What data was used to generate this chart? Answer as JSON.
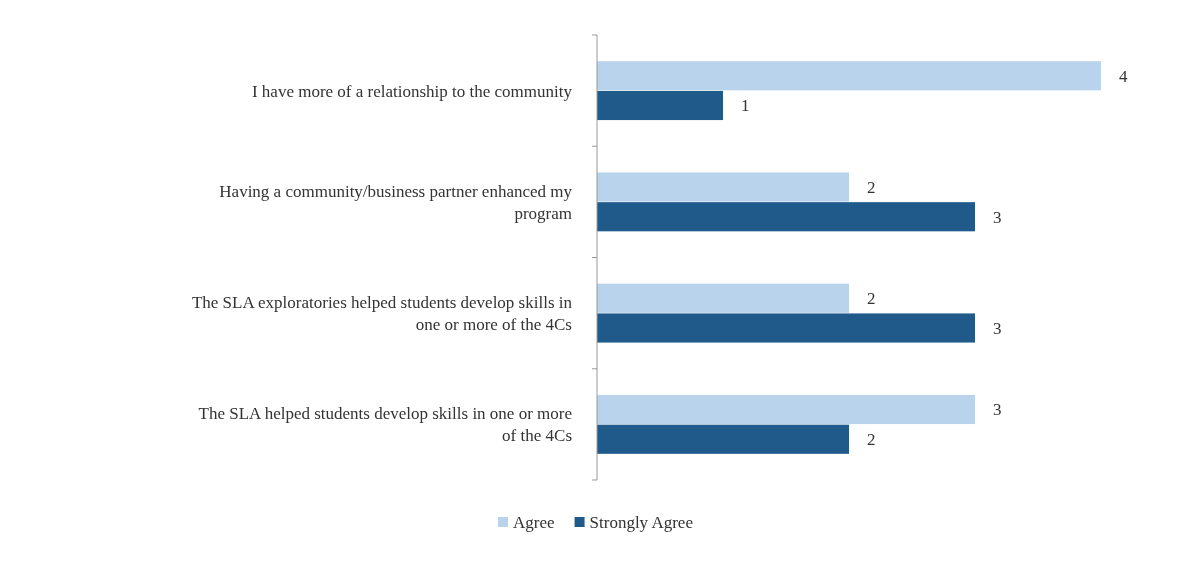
{
  "chart_data": {
    "type": "bar",
    "orientation": "horizontal",
    "categories": [
      "I have more of a relationship to the community",
      "Having a community/business partner enhanced my program",
      "The SLA exploratories helped students develop skills in one or more of the 4Cs",
      "The SLA helped students develop skills in one or more of the 4Cs"
    ],
    "series": [
      {
        "name": "Agree",
        "color": "#b9d3ec",
        "values": [
          4,
          2,
          2,
          3
        ]
      },
      {
        "name": "Strongly Agree",
        "color": "#1f5a8a",
        "values": [
          1,
          3,
          3,
          2
        ]
      }
    ],
    "data_labels": true,
    "legend": "bottom"
  }
}
